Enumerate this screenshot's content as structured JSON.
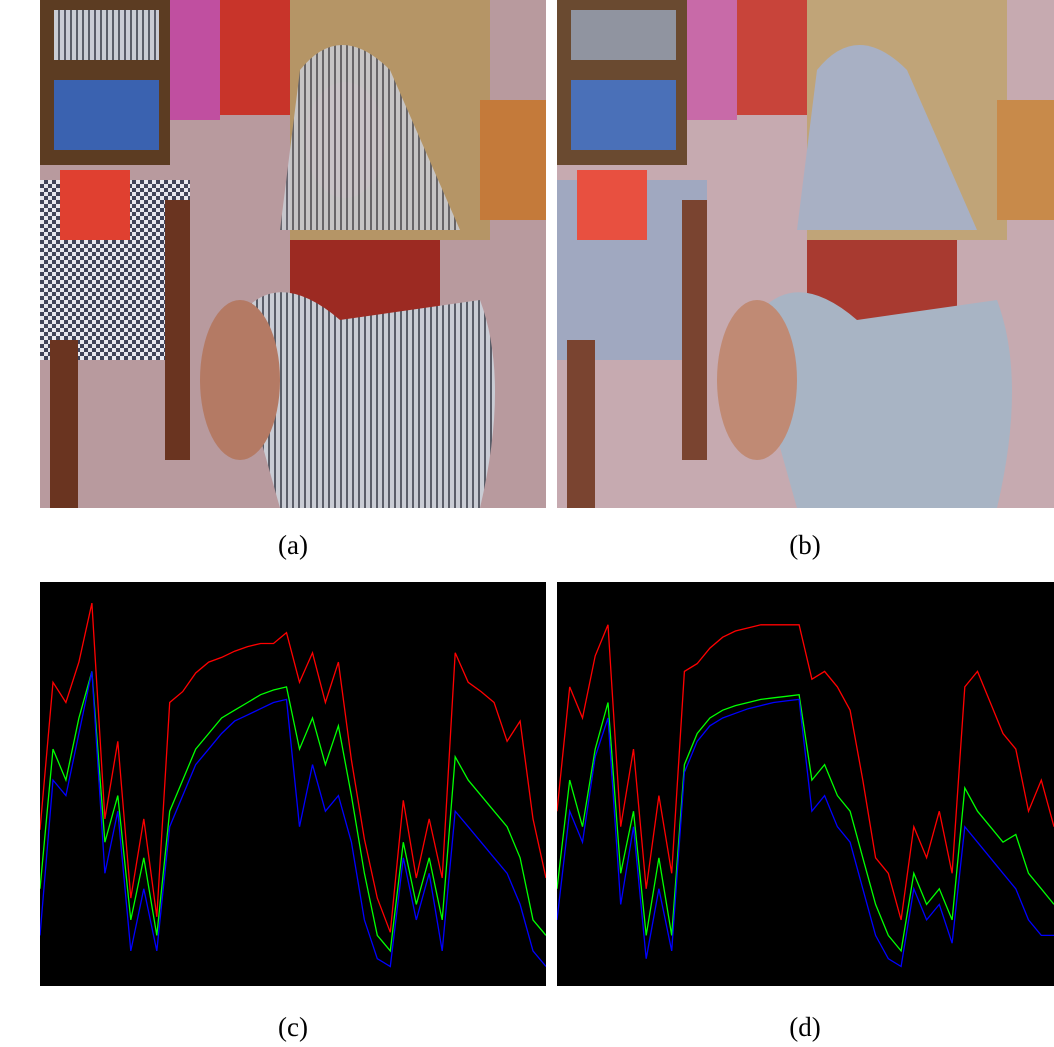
{
  "panels": [
    {
      "label": "(a)"
    },
    {
      "label": "(b)"
    }
  ],
  "chart_data": [
    {
      "type": "line",
      "caption": "(c)",
      "ylim": [
        0,
        255
      ],
      "series": [
        {
          "color": "#ff0000",
          "values": [
            98,
            193,
            180,
            206,
            244,
            105,
            155,
            54,
            105,
            42,
            180,
            187,
            199,
            206,
            209,
            213,
            216,
            218,
            218,
            225,
            193,
            212,
            180,
            206,
            143,
            92,
            54,
            32,
            117,
            67,
            105,
            67,
            212,
            193,
            187,
            180,
            155,
            168,
            105,
            67
          ]
        },
        {
          "color": "#00ff00",
          "values": [
            60,
            150,
            130,
            170,
            200,
            90,
            120,
            40,
            80,
            30,
            110,
            130,
            150,
            160,
            170,
            175,
            180,
            185,
            188,
            190,
            150,
            170,
            140,
            165,
            120,
            70,
            30,
            20,
            90,
            50,
            80,
            40,
            145,
            130,
            120,
            110,
            100,
            80,
            40,
            30
          ]
        },
        {
          "color": "#0000ff",
          "values": [
            30,
            130,
            120,
            160,
            200,
            70,
            110,
            20,
            60,
            20,
            100,
            120,
            140,
            150,
            160,
            168,
            172,
            176,
            180,
            182,
            100,
            140,
            110,
            120,
            90,
            40,
            15,
            10,
            80,
            40,
            70,
            20,
            110,
            100,
            90,
            80,
            70,
            50,
            20,
            10
          ]
        }
      ]
    },
    {
      "type": "line",
      "caption": "(d)",
      "ylim": [
        0,
        255
      ],
      "series": [
        {
          "color": "#ff0000",
          "values": [
            110,
            190,
            170,
            210,
            230,
            100,
            150,
            60,
            120,
            70,
            200,
            205,
            215,
            222,
            226,
            228,
            230,
            230,
            230,
            230,
            195,
            200,
            190,
            175,
            130,
            80,
            70,
            40,
            100,
            80,
            110,
            70,
            190,
            200,
            180,
            160,
            150,
            110,
            130,
            100
          ]
        },
        {
          "color": "#00ff00",
          "values": [
            60,
            130,
            100,
            150,
            180,
            70,
            110,
            30,
            80,
            30,
            140,
            160,
            170,
            175,
            178,
            180,
            182,
            183,
            184,
            185,
            130,
            140,
            120,
            110,
            80,
            50,
            30,
            20,
            70,
            50,
            60,
            40,
            125,
            110,
            100,
            90,
            95,
            70,
            60,
            50
          ]
        },
        {
          "color": "#0000ff",
          "values": [
            40,
            110,
            90,
            145,
            170,
            50,
            100,
            15,
            60,
            20,
            135,
            155,
            165,
            170,
            173,
            176,
            178,
            180,
            181,
            182,
            110,
            120,
            100,
            90,
            60,
            30,
            15,
            10,
            60,
            40,
            50,
            25,
            100,
            90,
            80,
            70,
            60,
            40,
            30,
            30
          ]
        }
      ]
    }
  ]
}
